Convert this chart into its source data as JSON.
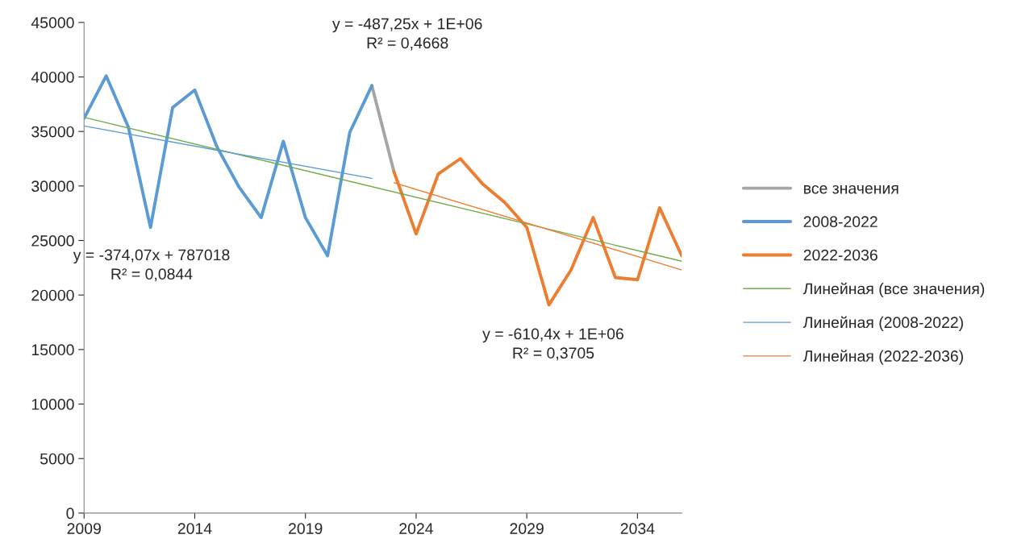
{
  "chart_data": {
    "type": "line",
    "xlim": [
      2009,
      2036
    ],
    "xticks": [
      2009,
      2014,
      2019,
      2024,
      2029,
      2034
    ],
    "ylim": [
      0,
      45000
    ],
    "yticks": [
      0,
      5000,
      10000,
      15000,
      20000,
      25000,
      30000,
      35000,
      40000,
      45000
    ],
    "grid": false,
    "legend": "right",
    "marker": "none",
    "series": [
      {
        "name": "все значения",
        "color": "#a5a5a5",
        "x": [
          2022,
          2023
        ],
        "values": [
          39200,
          31300
        ]
      },
      {
        "name": "2008-2022",
        "color": "#5b9bd5",
        "x": [
          2009,
          2010,
          2011,
          2012,
          2013,
          2014,
          2015,
          2016,
          2017,
          2018,
          2019,
          2020,
          2021,
          2022
        ],
        "values": [
          36200,
          40100,
          35400,
          26200,
          37200,
          38800,
          33600,
          29900,
          27100,
          34100,
          27100,
          23600,
          34900,
          39200
        ]
      },
      {
        "name": "2022-2036",
        "color": "#ed7d31",
        "x": [
          2023,
          2024,
          2025,
          2026,
          2027,
          2028,
          2029,
          2030,
          2031,
          2032,
          2033,
          2034,
          2035,
          2036
        ],
        "values": [
          31300,
          25600,
          31100,
          32500,
          30200,
          28500,
          26200,
          19100,
          22300,
          27100,
          21600,
          21400,
          28000,
          23600
        ]
      },
      {
        "name": "Линейная (все значения)",
        "color": "#70ad47",
        "x": [
          2009,
          2036
        ],
        "values": [
          36300,
          23100
        ]
      },
      {
        "name": "Линейная (2008-2022)",
        "color": "#5b9bd5",
        "x": [
          2009,
          2022
        ],
        "values": [
          35500,
          30700
        ]
      },
      {
        "name": "Линейная (2022-2036)",
        "color": "#ed7d31",
        "x": [
          2023,
          2036
        ],
        "values": [
          30300,
          22300
        ]
      }
    ],
    "annotations": [
      "y = -487,25x + 1E+06\nR² = 0,4668",
      "y = -374,07x + 787018\nR² = 0,0844",
      "y = -610,4x + 1E+06\nR² = 0,3705"
    ]
  }
}
